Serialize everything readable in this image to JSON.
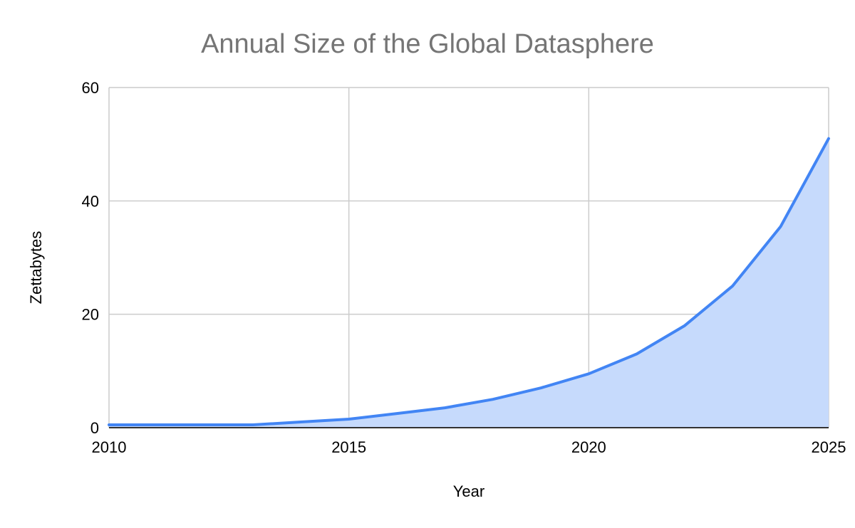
{
  "chart_data": {
    "type": "area",
    "title": "Annual Size of the Global Datasphere",
    "xlabel": "Year",
    "ylabel": "Zettabytes",
    "xlim": [
      2010,
      2025
    ],
    "ylim": [
      0,
      60
    ],
    "x_ticks": [
      "2010",
      "2015",
      "2020",
      "2025"
    ],
    "y_ticks": [
      "0",
      "20",
      "40",
      "60"
    ],
    "grid": true,
    "legend": "none",
    "series": [
      {
        "x": [
          2010,
          2011,
          2012,
          2013,
          2014,
          2015,
          2016,
          2017,
          2018,
          2019,
          2020,
          2021,
          2022,
          2023,
          2024,
          2025
        ],
        "values": [
          0.5,
          0.5,
          0.5,
          0.5,
          1.0,
          1.5,
          2.5,
          3.5,
          5.0,
          7.0,
          9.5,
          13.0,
          18.0,
          25.0,
          35.5,
          51.0
        ]
      }
    ],
    "colors": {
      "line": "#4285f4",
      "fill": "#c6dafc",
      "grid": "#cccccc",
      "baseline": "#333333",
      "title": "#757575"
    }
  }
}
